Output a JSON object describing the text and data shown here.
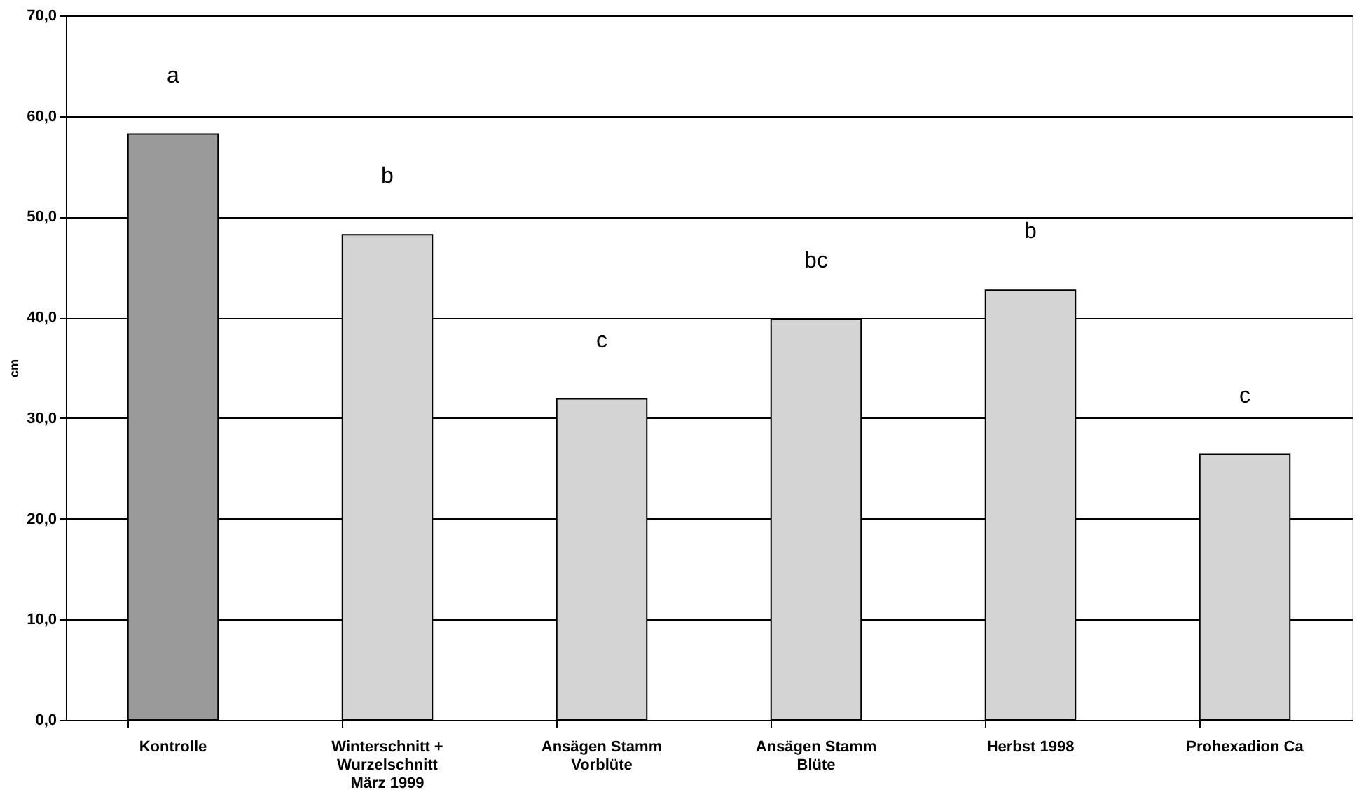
{
  "chart_data": {
    "type": "bar",
    "ylabel": "cm",
    "categories": [
      "Kontrolle",
      "Winterschnitt +\nWurzelschnitt\nMärz 1999",
      "Ansägen Stamm\nVorblüte",
      "Ansägen Stamm\nBlüte",
      "Herbst 1998",
      "Prohexadion Ca"
    ],
    "values": [
      58.2,
      48.2,
      31.9,
      39.8,
      42.7,
      26.4
    ],
    "colors": [
      "#9a9a9a",
      "#d4d4d4",
      "#d4d4d4",
      "#d4d4d4",
      "#d4d4d4",
      "#d4d4d4"
    ],
    "ylim": [
      0,
      70
    ],
    "yticks": [
      {
        "value": 0,
        "label": "0,0"
      },
      {
        "value": 10,
        "label": "10,0"
      },
      {
        "value": 20,
        "label": "20,0"
      },
      {
        "value": 30,
        "label": "30,0"
      },
      {
        "value": 40,
        "label": "40,0"
      },
      {
        "value": 50,
        "label": "50,0"
      },
      {
        "value": 60,
        "label": "60,0"
      },
      {
        "value": 70,
        "label": "70,0"
      }
    ],
    "grid": "y",
    "annotations": [
      "a",
      "b",
      "c",
      "bc",
      "b",
      "c"
    ]
  }
}
